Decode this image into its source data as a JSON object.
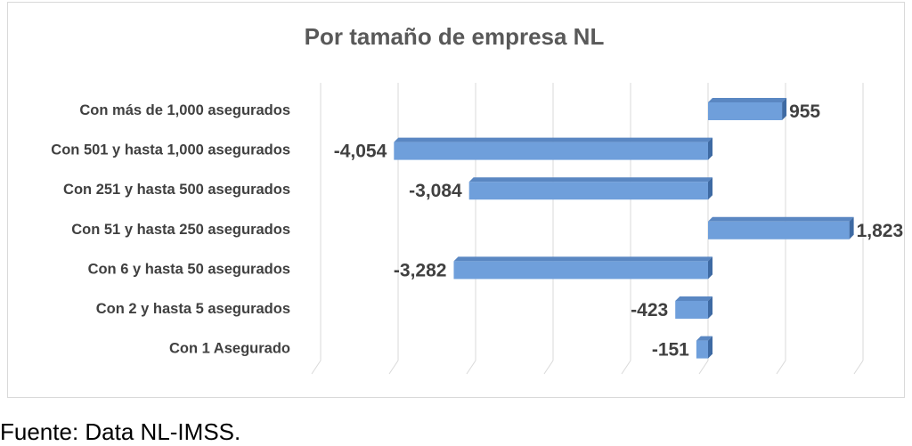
{
  "chart_data": {
    "type": "bar",
    "orientation": "horizontal",
    "title": "Por tamaño de empresa NL",
    "categories": [
      "Con más de 1,000 asegurados",
      "Con 501 y hasta 1,000 asegurados",
      "Con 251 y hasta 500 asegurados",
      "Con 51 y hasta 250 asegurados",
      "Con 6 y hasta 50 asegurados",
      "Con 2 y hasta 5 asegurados",
      "Con 1 Asegurado"
    ],
    "values": [
      955,
      -4054,
      -3084,
      1823,
      -3282,
      -423,
      -151
    ],
    "value_labels": [
      "955",
      "-4,054",
      "-3,084",
      "1,823",
      "-3,282",
      "-423",
      "-151"
    ],
    "xlim": [
      -5000,
      2000
    ],
    "grid": true,
    "legend": "none",
    "bar_color": "#6f9fdb"
  },
  "footer": {
    "source": "Fuente: Data NL-IMSS."
  }
}
